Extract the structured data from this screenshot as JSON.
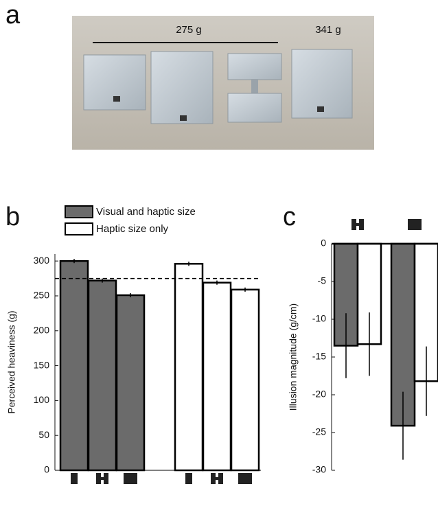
{
  "panels": [
    "a",
    "b",
    "c"
  ],
  "photo": {
    "left_label": "275 g",
    "right_label": "341 g"
  },
  "chart_data": [
    {
      "type": "bar",
      "ylabel": "Perceived heaviness (g)",
      "categories": [
        null,
        null,
        null
      ],
      "series": [
        {
          "name": "Visual and haptic size",
          "color": "#6b6b6b",
          "values": [
            300,
            272,
            251
          ],
          "errors": [
            3,
            3,
            3
          ]
        },
        {
          "name": "Haptic size only",
          "color": "#ffffff",
          "values": [
            296,
            269,
            259
          ],
          "errors": [
            3,
            3,
            3
          ]
        }
      ],
      "reference_line": 275,
      "ylim": [
        0,
        310
      ],
      "yticks": [
        0,
        50,
        100,
        150,
        200,
        250,
        300
      ],
      "legend": "top"
    },
    {
      "type": "bar",
      "ylabel": "Illusion magnitude (g/cm)",
      "categories": [
        null,
        null
      ],
      "series": [
        {
          "color": "#6b6b6b",
          "values": [
            -13.5,
            -24.1
          ],
          "errors": [
            4.3,
            4.5
          ]
        },
        {
          "color": "#ffffff",
          "values": [
            -13.3,
            -18.2
          ],
          "errors": [
            4.2,
            4.6
          ]
        }
      ],
      "ylim": [
        -30,
        0
      ],
      "yticks": [
        -30,
        -25,
        -20,
        -15,
        -10,
        -5,
        0
      ]
    }
  ]
}
